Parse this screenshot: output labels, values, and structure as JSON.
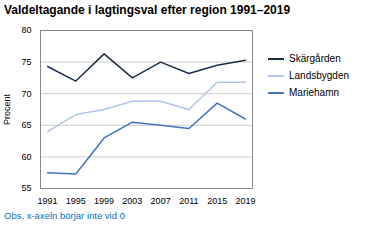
{
  "chart_data": {
    "type": "line",
    "title": "Valdeltagande i lagtingsval efter region 1991–2019",
    "ylabel": "Procent",
    "annotations": [
      "Obs, x-axeln börjar inte vid 0"
    ],
    "x": [
      1991,
      1995,
      1999,
      2003,
      2007,
      2011,
      2015,
      2019
    ],
    "series": [
      {
        "name": "Skärgården",
        "color": "#1a2e4a",
        "values": [
          74.3,
          72.0,
          76.3,
          72.5,
          75.0,
          73.2,
          74.5,
          75.3
        ]
      },
      {
        "name": "Landsbygden",
        "color": "#aec6e8",
        "values": [
          64.0,
          66.7,
          67.5,
          68.8,
          68.8,
          67.5,
          71.8,
          71.8
        ]
      },
      {
        "name": "Mariehamn",
        "color": "#4472c4",
        "values": [
          57.5,
          57.3,
          63.0,
          65.5,
          65.0,
          64.5,
          68.5,
          66.0
        ]
      }
    ],
    "xlim": [
      1990,
      2020
    ],
    "xticks": [
      1991,
      1995,
      1999,
      2003,
      2007,
      2011,
      2015,
      2019
    ],
    "ylim": [
      55,
      80
    ],
    "yticks": [
      55,
      60,
      65,
      70,
      75,
      80
    ],
    "grid": true,
    "legend": "right"
  }
}
